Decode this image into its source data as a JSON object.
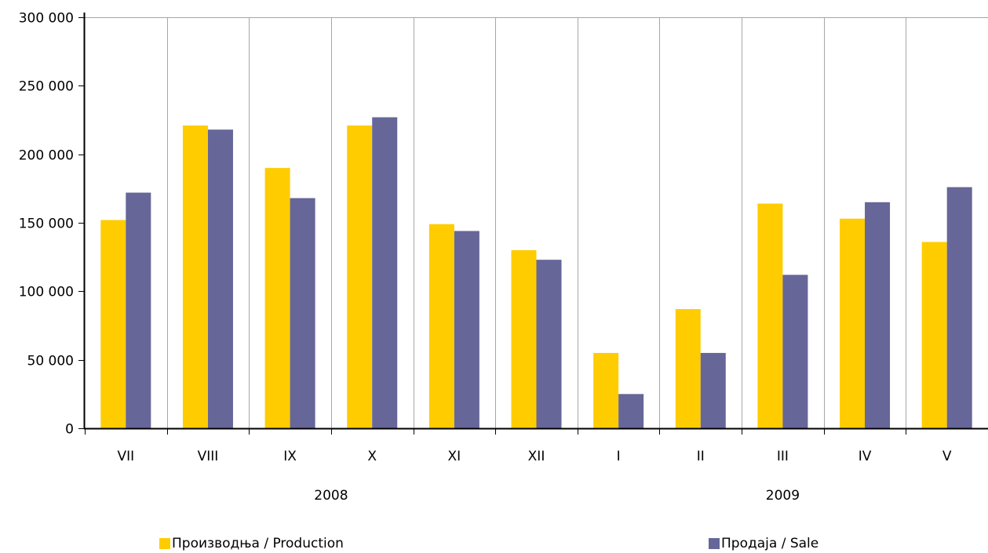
{
  "chart_data": {
    "type": "bar",
    "categories": [
      "VII",
      "VIII",
      "IX",
      "X",
      "XI",
      "XII",
      "I",
      "II",
      "III",
      "IV",
      "V"
    ],
    "groups": [
      {
        "label": "2008",
        "from": 0,
        "to": 5
      },
      {
        "label": "2009",
        "from": 6,
        "to": 10
      }
    ],
    "series": [
      {
        "name": "Производња / Production",
        "color": "#FFCC00",
        "values": [
          152000,
          221000,
          190000,
          221000,
          149000,
          130000,
          55000,
          87000,
          164000,
          153000,
          136000
        ]
      },
      {
        "name": "Продаја / Sale",
        "color": "#666699",
        "values": [
          172000,
          218000,
          168000,
          227000,
          144000,
          123000,
          25000,
          55000,
          112000,
          165000,
          176000
        ]
      }
    ],
    "y_ticks": [
      0,
      50000,
      100000,
      150000,
      200000,
      250000,
      300000
    ],
    "y_tick_labels": [
      "0",
      "50 000",
      "100 000",
      "150 000",
      "200 000",
      "250 000",
      "300 000"
    ],
    "ylim": [
      0,
      300000
    ],
    "grid": "vertical",
    "legend_position": "bottom"
  }
}
